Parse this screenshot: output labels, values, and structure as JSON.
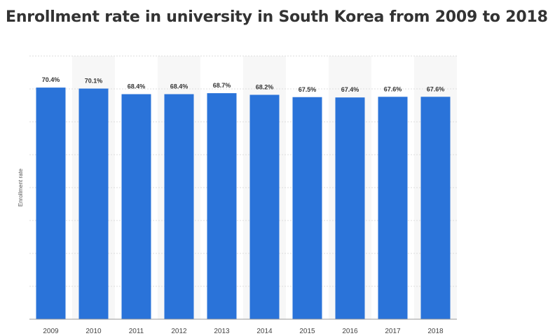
{
  "chart_data": {
    "type": "bar",
    "title": "Enrollment rate in university in South Korea from 2009 to 2018",
    "xlabel": "",
    "ylabel": "Enrollment rate",
    "categories": [
      "2009",
      "2010",
      "2011",
      "2012",
      "2013",
      "2014",
      "2015",
      "2016",
      "2017",
      "2018"
    ],
    "values": [
      70.4,
      70.1,
      68.4,
      68.4,
      68.7,
      68.2,
      67.5,
      67.4,
      67.6,
      67.6
    ],
    "value_labels": [
      "70.4%",
      "70.1%",
      "68.4%",
      "68.4%",
      "68.7%",
      "68.2%",
      "67.5%",
      "67.4%",
      "67.6%",
      "67.6%"
    ],
    "ylim": [
      0,
      80
    ],
    "grid": true,
    "legend": "none",
    "bar_color": "#2a73d9"
  }
}
